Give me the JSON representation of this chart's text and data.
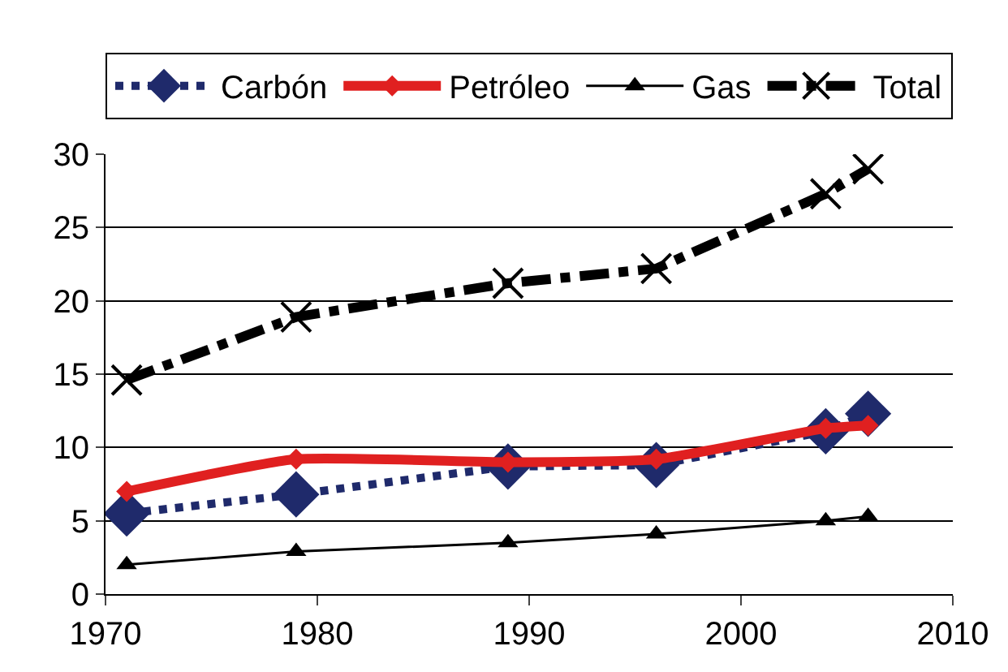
{
  "chart_data": {
    "type": "line",
    "x": [
      1971,
      1979,
      1989,
      1996,
      2004,
      2006
    ],
    "series": [
      {
        "name": "Carbón",
        "color": "#1f2a6b",
        "values": [
          5.5,
          6.8,
          8.7,
          8.8,
          11.1,
          12.3
        ],
        "marker": "diamond",
        "line_style": "dotted"
      },
      {
        "name": "Petróleo",
        "color": "#e02020",
        "values": [
          7.0,
          9.2,
          9.0,
          9.2,
          11.3,
          11.5
        ],
        "marker": "diamond",
        "line_style": "solid"
      },
      {
        "name": "Gas",
        "color": "#000000",
        "values": [
          2.0,
          2.9,
          3.5,
          4.1,
          5.0,
          5.3
        ],
        "marker": "triangle",
        "line_style": "solid"
      },
      {
        "name": "Total",
        "color": "#000000",
        "values": [
          14.6,
          18.9,
          21.2,
          22.2,
          27.3,
          29.0
        ],
        "marker": "cross",
        "line_style": "dashdot"
      }
    ],
    "xlim": [
      1970,
      2010
    ],
    "xticks": [
      1970,
      1980,
      1990,
      2000,
      2010
    ],
    "ylim": [
      0,
      30
    ],
    "yticks": [
      0,
      5,
      10,
      15,
      20,
      25,
      30
    ],
    "grid": "y",
    "legend": "top"
  }
}
